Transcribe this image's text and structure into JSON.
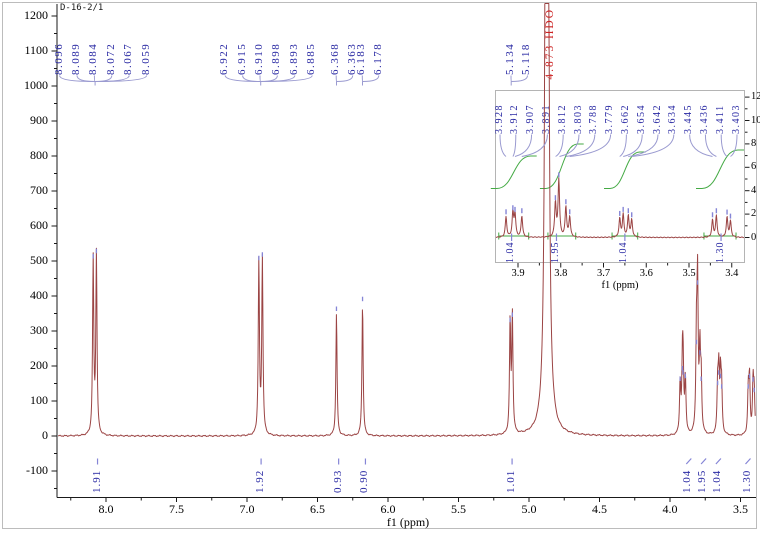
{
  "title": "D-16-2/1",
  "colors": {
    "spectrum": "#9b4444",
    "peak_label": "#2929a3",
    "leader_line": "#9a9ad0",
    "solvent_label": "#cc2222",
    "integral_mark": "#8585d6",
    "integral_region": "#44aa44",
    "axis": "#1a1a1a",
    "frame": "#bcbcbc",
    "inset_border": "#b4b4b4"
  },
  "chart_data": {
    "type": "line",
    "title": "D-16-2/1",
    "xlabel": "f1 (ppm)",
    "x_axis": {
      "label": "f1 (ppm)",
      "ticks": [
        "8.0",
        "7.5",
        "7.0",
        "6.5",
        "6.0",
        "5.5",
        "5.0",
        "4.5",
        "4.0",
        "3.5"
      ],
      "range": [
        8.35,
        3.36
      ],
      "direction": "reversed"
    },
    "y_axis": {
      "ticks": [
        1200,
        1100,
        1000,
        900,
        800,
        700,
        600,
        500,
        400,
        300,
        200,
        100,
        0,
        -100
      ],
      "range": [
        -175,
        1240
      ]
    },
    "solvent_peak": {
      "ppm": 4.873,
      "label": "4.873 HDO"
    },
    "peaks": [
      [
        8.091,
        500
      ],
      [
        8.068,
        515
      ],
      [
        6.916,
        495
      ],
      [
        6.891,
        505
      ],
      [
        6.3655,
        350
      ],
      [
        6.1805,
        378
      ],
      [
        5.134,
        318
      ],
      [
        5.118,
        333
      ],
      [
        4.873,
        8000,
        0.9
      ],
      [
        3.928,
        150
      ],
      [
        3.912,
        180
      ],
      [
        3.907,
        168
      ],
      [
        3.891,
        158
      ],
      [
        3.8125,
        255
      ],
      [
        3.8045,
        425
      ],
      [
        3.788,
        225
      ],
      [
        3.779,
        150
      ],
      [
        3.662,
        138
      ],
      [
        3.654,
        168
      ],
      [
        3.642,
        158
      ],
      [
        3.634,
        128
      ],
      [
        3.445,
        128
      ],
      [
        3.436,
        158
      ],
      [
        3.411,
        148
      ],
      [
        3.403,
        118
      ]
    ],
    "peak_label_groups": [
      {
        "labels": [
          "8.096",
          "8.089",
          "8.084",
          "8.072",
          "8.067",
          "8.059"
        ],
        "converge_ppm": 8.077
      },
      {
        "labels": [
          "6.922",
          "6.915",
          "6.910",
          "6.898",
          "6.893",
          "6.885"
        ],
        "converge_ppm": 6.903
      },
      {
        "labels": [
          "6.368",
          "6.363"
        ],
        "converge_ppm": 6.3655
      },
      {
        "labels": [
          "6.183",
          "6.178"
        ],
        "converge_ppm": 6.1805
      },
      {
        "labels": [
          "5.134",
          "5.118"
        ],
        "converge_ppm": 5.126
      }
    ],
    "integrals": [
      {
        "value": "1.91",
        "ppm": 8.06,
        "slant": false
      },
      {
        "value": "1.92",
        "ppm": 6.9,
        "slant": false
      },
      {
        "value": "0.93",
        "ppm": 6.35,
        "slant": false
      },
      {
        "value": "0.90",
        "ppm": 6.16,
        "slant": false
      },
      {
        "value": "1.01",
        "ppm": 5.12,
        "slant": false
      },
      {
        "value": "1.04",
        "ppm": 3.87,
        "slant": true
      },
      {
        "value": "1.95",
        "ppm": 3.765,
        "slant": true
      },
      {
        "value": "1.04",
        "ppm": 3.66,
        "slant": true
      },
      {
        "value": "1.30",
        "ppm": 3.45,
        "slant": true
      }
    ],
    "inset": {
      "x_axis": {
        "label": "f1 (ppm)",
        "ticks": [
          "3.9",
          "3.8",
          "3.7",
          "3.6",
          "3.5",
          "3.4"
        ],
        "range": [
          3.955,
          3.37
        ],
        "direction": "reversed"
      },
      "y_axis": {
        "ticks": [
          "12",
          "10",
          "8",
          "6",
          "4",
          "2",
          "0"
        ]
      },
      "peak_labels": [
        "3.928",
        "3.912",
        "3.907",
        "3.891",
        "3.812",
        "3.803",
        "3.788",
        "3.779",
        "3.662",
        "3.654",
        "3.642",
        "3.634",
        "3.445",
        "3.436",
        "3.411",
        "3.403"
      ],
      "integrals": [
        {
          "value": "1.04",
          "ppm": 3.915
        },
        {
          "value": "1.95",
          "ppm": 3.81
        },
        {
          "value": "1.04",
          "ppm": 3.65
        },
        {
          "value": "1.30",
          "ppm": 3.425
        }
      ],
      "integral_regions": [
        [
          3.945,
          3.875
        ],
        [
          3.83,
          3.765
        ],
        [
          3.68,
          3.62
        ],
        [
          3.465,
          3.39
        ]
      ]
    }
  }
}
